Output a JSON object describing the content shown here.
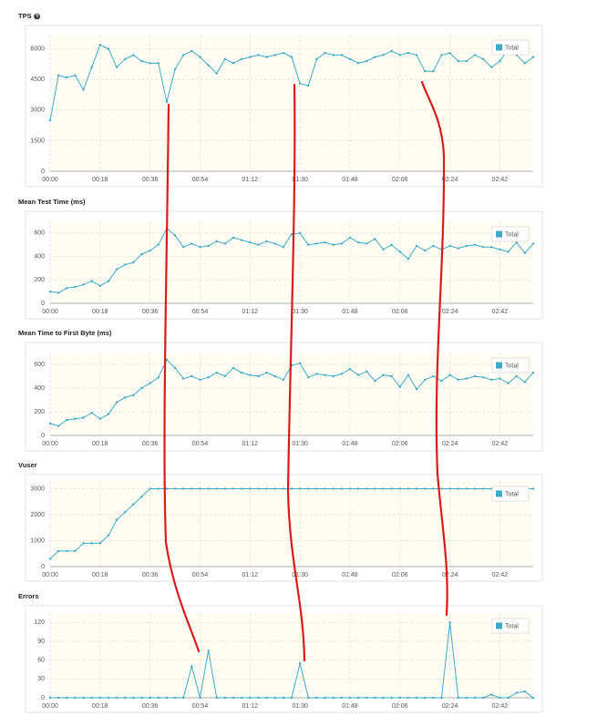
{
  "chart_data": [
    {
      "type": "line",
      "title": "TPS",
      "x": [
        0,
        3,
        6,
        9,
        12,
        15,
        18,
        21,
        24,
        27,
        30,
        33,
        36,
        39,
        42,
        45,
        48,
        51,
        54,
        57,
        60,
        63,
        66,
        69,
        72,
        75,
        78,
        81,
        84,
        87,
        90,
        93,
        96,
        99,
        102,
        105,
        108,
        111,
        114,
        117,
        120,
        123,
        126,
        129,
        132,
        135,
        138,
        141,
        144,
        147,
        150,
        153,
        156,
        159,
        162,
        165,
        168,
        171,
        174
      ],
      "series": [
        {
          "name": "Total",
          "color": "#3eaac4",
          "values": [
            2500,
            4700,
            4600,
            4700,
            4000,
            5100,
            6200,
            6000,
            5100,
            5500,
            5700,
            5400,
            5300,
            5300,
            3400,
            5000,
            5700,
            5900,
            5600,
            5200,
            4800,
            5500,
            5300,
            5500,
            5600,
            5700,
            5600,
            5700,
            5800,
            5600,
            4300,
            4200,
            5500,
            5800,
            5700,
            5700,
            5500,
            5300,
            5400,
            5600,
            5700,
            5900,
            5700,
            5800,
            5700,
            4900,
            4900,
            5700,
            5800,
            5400,
            5400,
            5700,
            5500,
            5100,
            5400,
            6000,
            5700,
            5300,
            5600
          ]
        }
      ],
      "xlim": [
        0,
        174
      ],
      "ylim": [
        0,
        6700
      ],
      "xticks": [
        {
          "value": 0,
          "label": "00:00"
        },
        {
          "value": 18,
          "label": "00:18"
        },
        {
          "value": 36,
          "label": "00:36"
        },
        {
          "value": 54,
          "label": "00:54"
        },
        {
          "value": 72,
          "label": "01:12"
        },
        {
          "value": 90,
          "label": "01:30"
        },
        {
          "value": 108,
          "label": "01:48"
        },
        {
          "value": 126,
          "label": "02:06"
        },
        {
          "value": 144,
          "label": "02:24"
        },
        {
          "value": 162,
          "label": "02:42"
        }
      ],
      "yticks": [
        0,
        1500,
        3000,
        4500,
        6000
      ],
      "grid": true,
      "legend": "upper right"
    },
    {
      "type": "line",
      "title": "Mean Test Time (ms)",
      "x": [
        0,
        3,
        6,
        9,
        12,
        15,
        18,
        21,
        24,
        27,
        30,
        33,
        36,
        39,
        42,
        45,
        48,
        51,
        54,
        57,
        60,
        63,
        66,
        69,
        72,
        75,
        78,
        81,
        84,
        87,
        90,
        93,
        96,
        99,
        102,
        105,
        108,
        111,
        114,
        117,
        120,
        123,
        126,
        129,
        132,
        135,
        138,
        141,
        144,
        147,
        150,
        153,
        156,
        159,
        162,
        165,
        168,
        171,
        174
      ],
      "series": [
        {
          "name": "Total",
          "color": "#3eaac4",
          "values": [
            100,
            90,
            130,
            140,
            160,
            190,
            150,
            190,
            290,
            330,
            350,
            420,
            450,
            500,
            640,
            580,
            480,
            510,
            480,
            490,
            530,
            510,
            560,
            540,
            520,
            500,
            530,
            510,
            480,
            590,
            600,
            500,
            510,
            520,
            500,
            510,
            560,
            520,
            510,
            550,
            460,
            500,
            440,
            380,
            490,
            450,
            490,
            460,
            490,
            470,
            490,
            500,
            480,
            480,
            460,
            440,
            520,
            430,
            510
          ]
        }
      ],
      "xlim": [
        0,
        174
      ],
      "ylim": [
        0,
        700
      ],
      "xticks": [
        {
          "value": 0,
          "label": "00:00"
        },
        {
          "value": 18,
          "label": "00:18"
        },
        {
          "value": 36,
          "label": "00:36"
        },
        {
          "value": 54,
          "label": "00:54"
        },
        {
          "value": 72,
          "label": "01:12"
        },
        {
          "value": 90,
          "label": "01:30"
        },
        {
          "value": 108,
          "label": "01:48"
        },
        {
          "value": 126,
          "label": "02:06"
        },
        {
          "value": 144,
          "label": "02:24"
        },
        {
          "value": 162,
          "label": "02:42"
        }
      ],
      "yticks": [
        0,
        200,
        400,
        600
      ],
      "grid": true,
      "legend": "upper right"
    },
    {
      "type": "line",
      "title": "Mean Time to First Byte (ms)",
      "x": [
        0,
        3,
        6,
        9,
        12,
        15,
        18,
        21,
        24,
        27,
        30,
        33,
        36,
        39,
        42,
        45,
        48,
        51,
        54,
        57,
        60,
        63,
        66,
        69,
        72,
        75,
        78,
        81,
        84,
        87,
        90,
        93,
        96,
        99,
        102,
        105,
        108,
        111,
        114,
        117,
        120,
        123,
        126,
        129,
        132,
        135,
        138,
        141,
        144,
        147,
        150,
        153,
        156,
        159,
        162,
        165,
        168,
        171,
        174
      ],
      "series": [
        {
          "name": "Total",
          "color": "#3eaac4",
          "values": [
            100,
            80,
            130,
            140,
            150,
            190,
            140,
            180,
            280,
            320,
            340,
            400,
            440,
            490,
            640,
            570,
            480,
            500,
            470,
            490,
            530,
            500,
            570,
            530,
            510,
            500,
            530,
            500,
            470,
            590,
            610,
            490,
            520,
            510,
            500,
            520,
            560,
            510,
            540,
            460,
            510,
            500,
            410,
            510,
            390,
            470,
            500,
            460,
            510,
            470,
            480,
            500,
            490,
            470,
            480,
            440,
            500,
            450,
            530
          ]
        }
      ],
      "xlim": [
        0,
        174
      ],
      "ylim": [
        0,
        700
      ],
      "xticks": [
        {
          "value": 0,
          "label": "00:00"
        },
        {
          "value": 18,
          "label": "00:18"
        },
        {
          "value": 36,
          "label": "00:36"
        },
        {
          "value": 54,
          "label": "00:54"
        },
        {
          "value": 72,
          "label": "01:12"
        },
        {
          "value": 90,
          "label": "01:30"
        },
        {
          "value": 108,
          "label": "01:48"
        },
        {
          "value": 126,
          "label": "02:06"
        },
        {
          "value": 144,
          "label": "02:24"
        },
        {
          "value": 162,
          "label": "02:42"
        }
      ],
      "yticks": [
        0,
        200,
        400,
        600
      ],
      "grid": true,
      "legend": "upper right"
    },
    {
      "type": "line",
      "title": "Vuser",
      "x": [
        0,
        3,
        6,
        9,
        12,
        15,
        18,
        21,
        24,
        27,
        30,
        33,
        36,
        39,
        42,
        45,
        48,
        51,
        54,
        57,
        60,
        63,
        66,
        69,
        72,
        75,
        78,
        81,
        84,
        87,
        90,
        93,
        96,
        99,
        102,
        105,
        108,
        111,
        114,
        117,
        120,
        123,
        126,
        129,
        132,
        135,
        138,
        141,
        144,
        147,
        150,
        153,
        156,
        159,
        162,
        165,
        168,
        171,
        174
      ],
      "series": [
        {
          "name": "Total",
          "color": "#3eaac4",
          "values": [
            300,
            600,
            600,
            600,
            900,
            900,
            900,
            1200,
            1800,
            2100,
            2400,
            2700,
            3000,
            3000,
            3000,
            3000,
            3000,
            3000,
            3000,
            3000,
            3000,
            3000,
            3000,
            3000,
            3000,
            3000,
            3000,
            3000,
            3000,
            3000,
            3000,
            3000,
            3000,
            3000,
            3000,
            3000,
            3000,
            3000,
            3000,
            3000,
            3000,
            3000,
            3000,
            3000,
            3000,
            3000,
            3000,
            3000,
            3000,
            3000,
            3000,
            3000,
            3000,
            3000,
            3000,
            3000,
            3000,
            3000,
            3000
          ]
        }
      ],
      "xlim": [
        0,
        174
      ],
      "ylim": [
        0,
        3300
      ],
      "xticks": [
        {
          "value": 0,
          "label": "00:00"
        },
        {
          "value": 18,
          "label": "00:18"
        },
        {
          "value": 36,
          "label": "00:36"
        },
        {
          "value": 54,
          "label": "00:54"
        },
        {
          "value": 72,
          "label": "01:12"
        },
        {
          "value": 90,
          "label": "01:30"
        },
        {
          "value": 108,
          "label": "01:48"
        },
        {
          "value": 126,
          "label": "02:06"
        },
        {
          "value": 144,
          "label": "02:24"
        },
        {
          "value": 162,
          "label": "02:42"
        }
      ],
      "yticks": [
        0,
        1000,
        2000,
        3000
      ],
      "grid": true,
      "legend": "upper right"
    },
    {
      "type": "line",
      "title": "Errors",
      "x": [
        0,
        3,
        6,
        9,
        12,
        15,
        18,
        21,
        24,
        27,
        30,
        33,
        36,
        39,
        42,
        45,
        48,
        51,
        54,
        57,
        60,
        63,
        66,
        69,
        72,
        75,
        78,
        81,
        84,
        87,
        90,
        93,
        96,
        99,
        102,
        105,
        108,
        111,
        114,
        117,
        120,
        123,
        126,
        129,
        132,
        135,
        138,
        141,
        144,
        147,
        150,
        153,
        156,
        159,
        162,
        165,
        168,
        171,
        174
      ],
      "series": [
        {
          "name": "Total",
          "color": "#3eaac4",
          "values": [
            0,
            0,
            0,
            0,
            0,
            0,
            0,
            0,
            0,
            0,
            0,
            0,
            0,
            0,
            0,
            0,
            0,
            50,
            0,
            75,
            0,
            0,
            0,
            0,
            0,
            0,
            0,
            0,
            0,
            0,
            55,
            0,
            0,
            0,
            0,
            0,
            0,
            0,
            0,
            0,
            0,
            0,
            0,
            0,
            0,
            0,
            0,
            0,
            120,
            0,
            0,
            0,
            0,
            5,
            0,
            0,
            8,
            10,
            0
          ]
        }
      ],
      "xlim": [
        0,
        174
      ],
      "ylim": [
        0,
        135
      ],
      "xticks": [
        {
          "value": 0,
          "label": "00:00"
        },
        {
          "value": 18,
          "label": "00:18"
        },
        {
          "value": 36,
          "label": "00:36"
        },
        {
          "value": 54,
          "label": "00:54"
        },
        {
          "value": 72,
          "label": "01:12"
        },
        {
          "value": 90,
          "label": "01:30"
        },
        {
          "value": 108,
          "label": "01:48"
        },
        {
          "value": 126,
          "label": "02:06"
        },
        {
          "value": 144,
          "label": "02:24"
        },
        {
          "value": 162,
          "label": "02:42"
        }
      ],
      "yticks": [
        0,
        30,
        60,
        90,
        120
      ],
      "grid": true,
      "legend": "upper right"
    }
  ]
}
